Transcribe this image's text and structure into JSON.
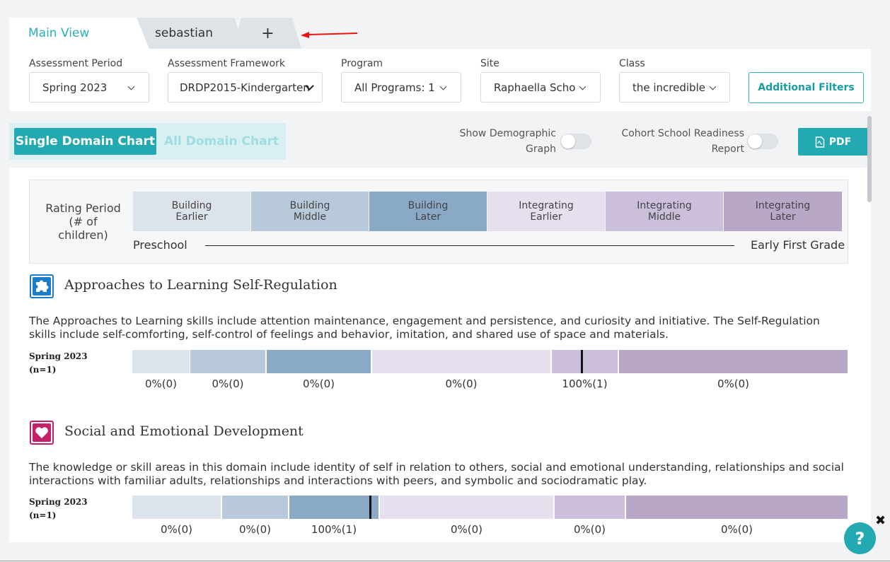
{
  "tabs": {
    "main": "Main View",
    "sebastian": "sebastian",
    "add": "+"
  },
  "filters": {
    "assessment_period": {
      "label": "Assessment Period",
      "value": "Spring 2023"
    },
    "assessment_framework": {
      "label": "Assessment Framework",
      "value": "DRDP2015-Kindergarten"
    },
    "program": {
      "label": "Program",
      "value": "All Programs: 1"
    },
    "site": {
      "label": "Site",
      "value": "Raphaella Scho"
    },
    "class": {
      "label": "Class",
      "value": "the incredible"
    },
    "additional_filters": "Additional Filters"
  },
  "toolbar": {
    "single_domain": "Single Domain Chart",
    "all_domain": "All Domain Chart",
    "show_demographic_line1": "Show Demographic",
    "show_demographic_line2": "Graph",
    "cohort_line1": "Cohort School Readiness",
    "cohort_line2": "Report",
    "pdf": "PDF"
  },
  "legend": {
    "title_line1": "Rating Period",
    "title_line2": "(# of children)",
    "levels": [
      {
        "line1": "Building",
        "line2": "Earlier",
        "color": "#dde3ea"
      },
      {
        "line1": "Building",
        "line2": "Middle",
        "color": "#b7c9da"
      },
      {
        "line1": "Building",
        "line2": "Later",
        "color": "#8aa9c6"
      },
      {
        "line1": "Integrating",
        "line2": "Earlier",
        "color": "#e6e0ee"
      },
      {
        "line1": "Integrating",
        "line2": "Middle",
        "color": "#ccbfdc"
      },
      {
        "line1": "Integrating",
        "line2": "Later",
        "color": "#b8a7c6"
      }
    ],
    "start": "Preschool",
    "end": "Early First Grade"
  },
  "domains": [
    {
      "title": "Approaches to Learning Self-Regulation",
      "icon": "puzzle-icon",
      "icon_color": "#1b7dc8",
      "description": "The Approaches to Learning skills include attention maintenance, engagement and persistence, and curiosity and initiative. The Self-Regulation skills include self-comforting, self-control of feelings and behavior, imitation, and shared use of space and materials.",
      "period": "Spring 2023",
      "n": "(n=1)",
      "percentages": [
        "0%(0)",
        "0%(0)",
        "0%(0)",
        "0%(0)",
        "100%(1)",
        "0%(0)"
      ]
    },
    {
      "title": "Social and Emotional Development",
      "icon": "heart-icon",
      "icon_color": "#c4206a",
      "description": "The knowledge or skill areas in this domain include identity of self in relation to others, social and emotional understanding, relationships and social interactions with familiar adults, relationships and interactions with peers, and symbolic and sociodramatic play.",
      "period": "Spring 2023",
      "n": "(n=1)",
      "percentages": [
        "0%(0)",
        "0%(0)",
        "100%(1)",
        "0%(0)",
        "0%(0)",
        "0%(0)"
      ]
    }
  ],
  "help": "?",
  "close": "✖"
}
